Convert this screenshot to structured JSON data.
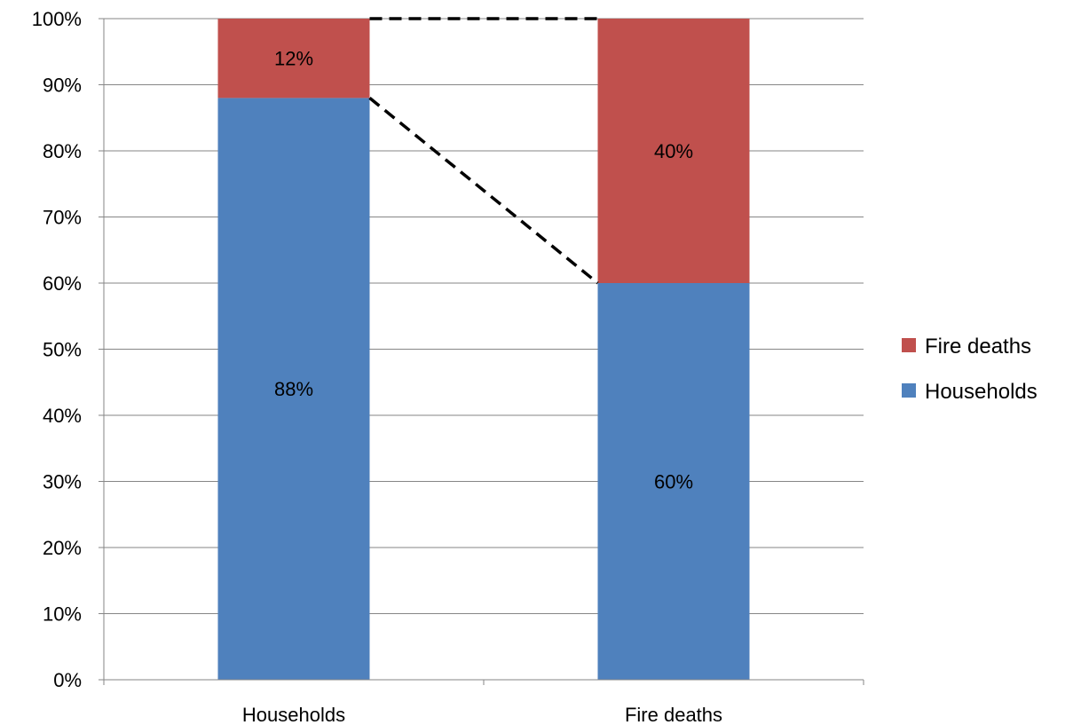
{
  "chart_data": {
    "type": "bar",
    "stacked": true,
    "categories": [
      "Households",
      "Fire deaths"
    ],
    "series": [
      {
        "name": "Households",
        "values": [
          88,
          60
        ],
        "labels": [
          "88%",
          "60%"
        ],
        "color": "#4F81BD"
      },
      {
        "name": "Fire deaths",
        "values": [
          12,
          40
        ],
        "labels": [
          "12%",
          "40%"
        ],
        "color": "#C0504D"
      }
    ],
    "title": "",
    "xlabel": "",
    "ylabel": "",
    "ylim": [
      0,
      100
    ],
    "yticks": [
      0,
      10,
      20,
      30,
      40,
      50,
      60,
      70,
      80,
      90,
      100
    ],
    "ytick_labels": [
      "0%",
      "10%",
      "20%",
      "30%",
      "40%",
      "50%",
      "60%",
      "70%",
      "80%",
      "90%",
      "100%"
    ],
    "grid": true,
    "legend": {
      "position": "right",
      "entries": [
        "Fire deaths",
        "Households"
      ]
    },
    "annotations": [
      {
        "type": "dashed-line",
        "from": {
          "category": "Households",
          "y": 100
        },
        "to": {
          "category": "Fire deaths",
          "y": 100
        }
      },
      {
        "type": "dashed-line",
        "from": {
          "category": "Households",
          "y": 88
        },
        "to": {
          "category": "Fire deaths",
          "y": 60
        }
      }
    ],
    "colors": {
      "gridline": "#868686",
      "axis": "#868686",
      "connector": "#000000"
    }
  }
}
